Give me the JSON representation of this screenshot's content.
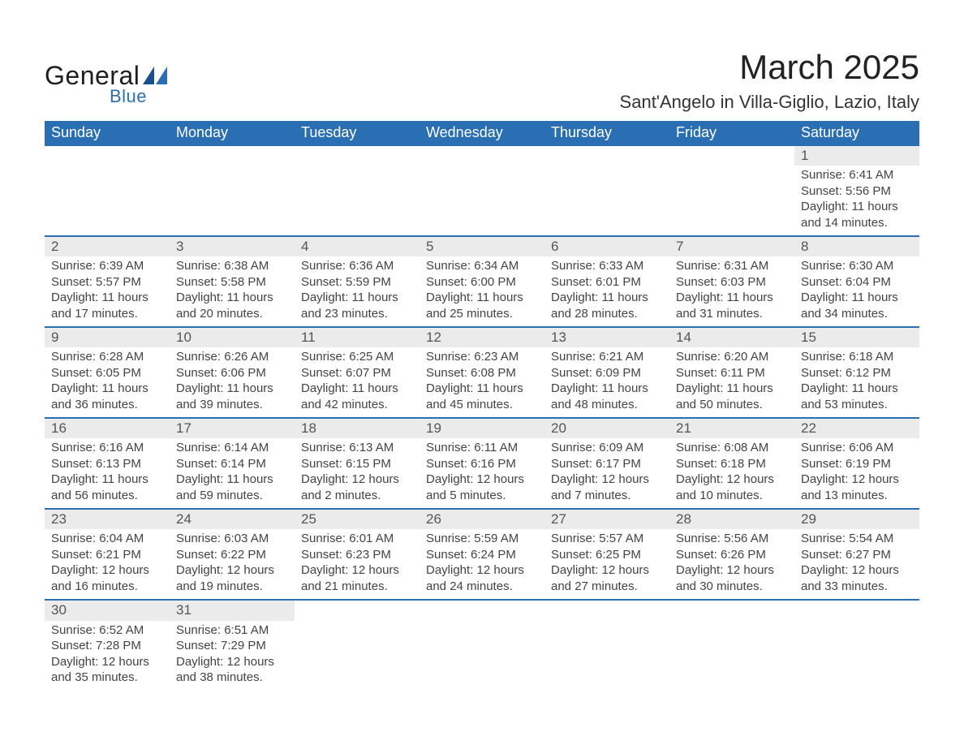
{
  "brand": {
    "line1": "General",
    "line2": "Blue"
  },
  "title": "March 2025",
  "location": "Sant'Angelo in Villa-Giglio, Lazio, Italy",
  "colors": {
    "header_bg": "#2a6fb3",
    "header_fg": "#ffffff",
    "daynum_bg": "#ebebeb",
    "row_border": "#2a6fb3",
    "text": "#444444",
    "logo_blue": "#2a6fb3"
  },
  "days_of_week": [
    "Sunday",
    "Monday",
    "Tuesday",
    "Wednesday",
    "Thursday",
    "Friday",
    "Saturday"
  ],
  "weeks": [
    [
      {
        "empty": true
      },
      {
        "empty": true
      },
      {
        "empty": true
      },
      {
        "empty": true
      },
      {
        "empty": true
      },
      {
        "empty": true
      },
      {
        "n": "1",
        "sunrise": "Sunrise: 6:41 AM",
        "sunset": "Sunset: 5:56 PM",
        "d1": "Daylight: 11 hours",
        "d2": "and 14 minutes."
      }
    ],
    [
      {
        "n": "2",
        "sunrise": "Sunrise: 6:39 AM",
        "sunset": "Sunset: 5:57 PM",
        "d1": "Daylight: 11 hours",
        "d2": "and 17 minutes."
      },
      {
        "n": "3",
        "sunrise": "Sunrise: 6:38 AM",
        "sunset": "Sunset: 5:58 PM",
        "d1": "Daylight: 11 hours",
        "d2": "and 20 minutes."
      },
      {
        "n": "4",
        "sunrise": "Sunrise: 6:36 AM",
        "sunset": "Sunset: 5:59 PM",
        "d1": "Daylight: 11 hours",
        "d2": "and 23 minutes."
      },
      {
        "n": "5",
        "sunrise": "Sunrise: 6:34 AM",
        "sunset": "Sunset: 6:00 PM",
        "d1": "Daylight: 11 hours",
        "d2": "and 25 minutes."
      },
      {
        "n": "6",
        "sunrise": "Sunrise: 6:33 AM",
        "sunset": "Sunset: 6:01 PM",
        "d1": "Daylight: 11 hours",
        "d2": "and 28 minutes."
      },
      {
        "n": "7",
        "sunrise": "Sunrise: 6:31 AM",
        "sunset": "Sunset: 6:03 PM",
        "d1": "Daylight: 11 hours",
        "d2": "and 31 minutes."
      },
      {
        "n": "8",
        "sunrise": "Sunrise: 6:30 AM",
        "sunset": "Sunset: 6:04 PM",
        "d1": "Daylight: 11 hours",
        "d2": "and 34 minutes."
      }
    ],
    [
      {
        "n": "9",
        "sunrise": "Sunrise: 6:28 AM",
        "sunset": "Sunset: 6:05 PM",
        "d1": "Daylight: 11 hours",
        "d2": "and 36 minutes."
      },
      {
        "n": "10",
        "sunrise": "Sunrise: 6:26 AM",
        "sunset": "Sunset: 6:06 PM",
        "d1": "Daylight: 11 hours",
        "d2": "and 39 minutes."
      },
      {
        "n": "11",
        "sunrise": "Sunrise: 6:25 AM",
        "sunset": "Sunset: 6:07 PM",
        "d1": "Daylight: 11 hours",
        "d2": "and 42 minutes."
      },
      {
        "n": "12",
        "sunrise": "Sunrise: 6:23 AM",
        "sunset": "Sunset: 6:08 PM",
        "d1": "Daylight: 11 hours",
        "d2": "and 45 minutes."
      },
      {
        "n": "13",
        "sunrise": "Sunrise: 6:21 AM",
        "sunset": "Sunset: 6:09 PM",
        "d1": "Daylight: 11 hours",
        "d2": "and 48 minutes."
      },
      {
        "n": "14",
        "sunrise": "Sunrise: 6:20 AM",
        "sunset": "Sunset: 6:11 PM",
        "d1": "Daylight: 11 hours",
        "d2": "and 50 minutes."
      },
      {
        "n": "15",
        "sunrise": "Sunrise: 6:18 AM",
        "sunset": "Sunset: 6:12 PM",
        "d1": "Daylight: 11 hours",
        "d2": "and 53 minutes."
      }
    ],
    [
      {
        "n": "16",
        "sunrise": "Sunrise: 6:16 AM",
        "sunset": "Sunset: 6:13 PM",
        "d1": "Daylight: 11 hours",
        "d2": "and 56 minutes."
      },
      {
        "n": "17",
        "sunrise": "Sunrise: 6:14 AM",
        "sunset": "Sunset: 6:14 PM",
        "d1": "Daylight: 11 hours",
        "d2": "and 59 minutes."
      },
      {
        "n": "18",
        "sunrise": "Sunrise: 6:13 AM",
        "sunset": "Sunset: 6:15 PM",
        "d1": "Daylight: 12 hours",
        "d2": "and 2 minutes."
      },
      {
        "n": "19",
        "sunrise": "Sunrise: 6:11 AM",
        "sunset": "Sunset: 6:16 PM",
        "d1": "Daylight: 12 hours",
        "d2": "and 5 minutes."
      },
      {
        "n": "20",
        "sunrise": "Sunrise: 6:09 AM",
        "sunset": "Sunset: 6:17 PM",
        "d1": "Daylight: 12 hours",
        "d2": "and 7 minutes."
      },
      {
        "n": "21",
        "sunrise": "Sunrise: 6:08 AM",
        "sunset": "Sunset: 6:18 PM",
        "d1": "Daylight: 12 hours",
        "d2": "and 10 minutes."
      },
      {
        "n": "22",
        "sunrise": "Sunrise: 6:06 AM",
        "sunset": "Sunset: 6:19 PM",
        "d1": "Daylight: 12 hours",
        "d2": "and 13 minutes."
      }
    ],
    [
      {
        "n": "23",
        "sunrise": "Sunrise: 6:04 AM",
        "sunset": "Sunset: 6:21 PM",
        "d1": "Daylight: 12 hours",
        "d2": "and 16 minutes."
      },
      {
        "n": "24",
        "sunrise": "Sunrise: 6:03 AM",
        "sunset": "Sunset: 6:22 PM",
        "d1": "Daylight: 12 hours",
        "d2": "and 19 minutes."
      },
      {
        "n": "25",
        "sunrise": "Sunrise: 6:01 AM",
        "sunset": "Sunset: 6:23 PM",
        "d1": "Daylight: 12 hours",
        "d2": "and 21 minutes."
      },
      {
        "n": "26",
        "sunrise": "Sunrise: 5:59 AM",
        "sunset": "Sunset: 6:24 PM",
        "d1": "Daylight: 12 hours",
        "d2": "and 24 minutes."
      },
      {
        "n": "27",
        "sunrise": "Sunrise: 5:57 AM",
        "sunset": "Sunset: 6:25 PM",
        "d1": "Daylight: 12 hours",
        "d2": "and 27 minutes."
      },
      {
        "n": "28",
        "sunrise": "Sunrise: 5:56 AM",
        "sunset": "Sunset: 6:26 PM",
        "d1": "Daylight: 12 hours",
        "d2": "and 30 minutes."
      },
      {
        "n": "29",
        "sunrise": "Sunrise: 5:54 AM",
        "sunset": "Sunset: 6:27 PM",
        "d1": "Daylight: 12 hours",
        "d2": "and 33 minutes."
      }
    ],
    [
      {
        "n": "30",
        "sunrise": "Sunrise: 6:52 AM",
        "sunset": "Sunset: 7:28 PM",
        "d1": "Daylight: 12 hours",
        "d2": "and 35 minutes."
      },
      {
        "n": "31",
        "sunrise": "Sunrise: 6:51 AM",
        "sunset": "Sunset: 7:29 PM",
        "d1": "Daylight: 12 hours",
        "d2": "and 38 minutes."
      },
      {
        "empty": true
      },
      {
        "empty": true
      },
      {
        "empty": true
      },
      {
        "empty": true
      },
      {
        "empty": true
      }
    ]
  ]
}
